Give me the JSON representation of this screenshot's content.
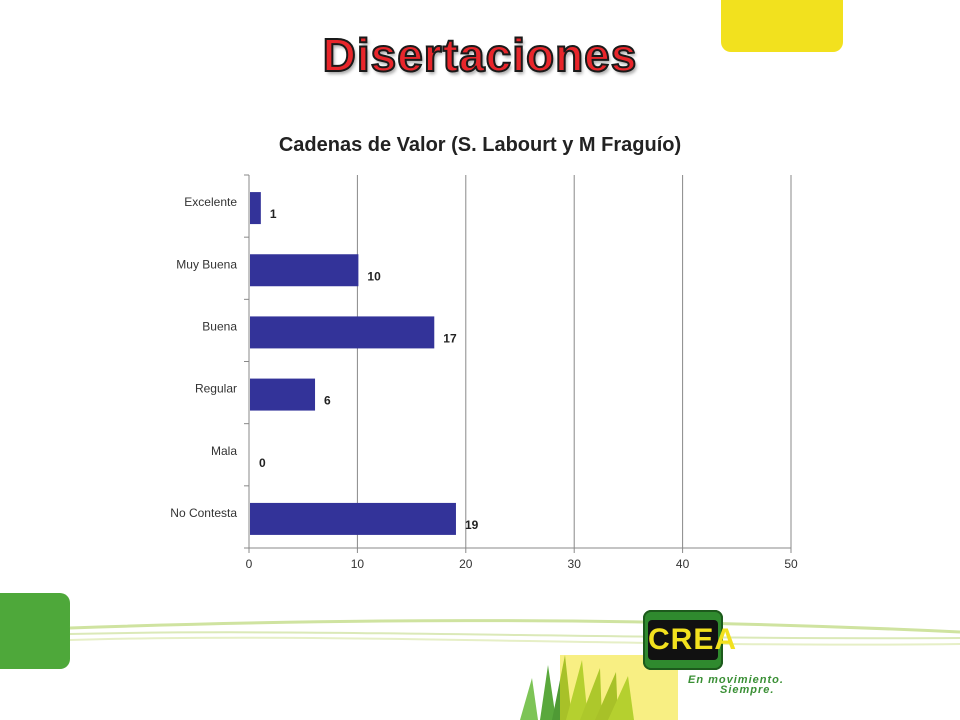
{
  "slide": {
    "title": "Disertaciones",
    "accent_color": "#e8262b",
    "yellow_color": "#f2e11e",
    "green_color": "#4ea83a"
  },
  "logo": {
    "text": "CREA",
    "tagline_line1": "En movimiento.",
    "tagline_line2": "Siempre."
  },
  "chart_data": {
    "type": "bar",
    "orientation": "horizontal",
    "title": "Cadenas de Valor (S. Labourt y M Fraguío)",
    "categories": [
      "Excelente",
      "Muy Buena",
      "Buena",
      "Regular",
      "Mala",
      "No Contesta"
    ],
    "values": [
      1,
      10,
      17,
      6,
      0,
      19
    ],
    "xlim": [
      0,
      50
    ],
    "xticks": [
      0,
      10,
      20,
      30,
      40,
      50
    ],
    "grid": true,
    "legend": "none",
    "bar_color": "#333399",
    "data_labels": true
  }
}
